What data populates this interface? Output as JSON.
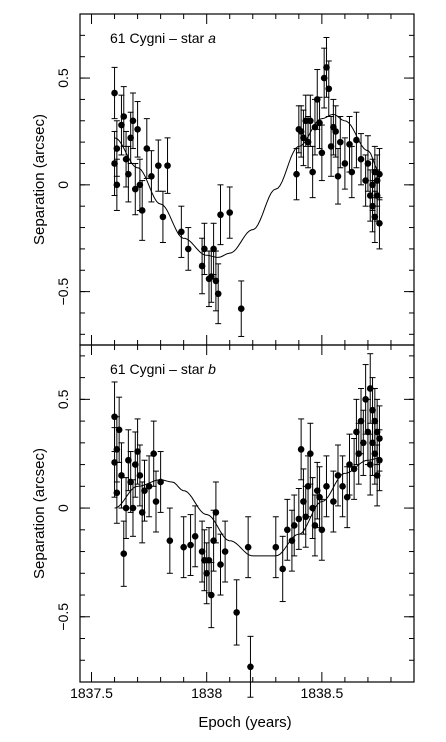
{
  "chart_data": {
    "type": "scatter",
    "xlabel": "Epoch (years)",
    "xlim": [
      1837.45,
      1838.9
    ],
    "x_ticks": [
      1837.5,
      1838,
      1838.5
    ],
    "x_tick_labels": [
      "1837.5",
      "1838",
      "1838.5"
    ],
    "panels": [
      {
        "label_text": "61 Cygni – star ",
        "label_italic": "a",
        "ylabel": "Separation (arcsec)",
        "ylim": [
          -0.75,
          0.8
        ],
        "y_ticks": [
          -0.5,
          0,
          0.5
        ],
        "y_tick_labels": [
          "−0.5",
          "0",
          "0.5"
        ],
        "fit_curve": {
          "x": [
            1837.6,
            1837.7,
            1837.8,
            1837.9,
            1838.0,
            1838.05,
            1838.1,
            1838.2,
            1838.3,
            1838.4,
            1838.5,
            1838.55,
            1838.6,
            1838.7,
            1838.75
          ],
          "y": [
            0.22,
            0.08,
            -0.09,
            -0.25,
            -0.33,
            -0.34,
            -0.32,
            -0.21,
            -0.02,
            0.18,
            0.31,
            0.33,
            0.3,
            0.16,
            0.06
          ]
        },
        "series": [
          {
            "points": [
              {
                "x": 1837.6,
                "y": 0.43,
                "err": 0.12
              },
              {
                "x": 1837.6,
                "y": 0.1,
                "err": 0.15
              },
              {
                "x": 1837.61,
                "y": 0.17,
                "err": 0.13
              },
              {
                "x": 1837.61,
                "y": 0.0,
                "err": 0.12
              },
              {
                "x": 1837.63,
                "y": 0.28,
                "err": 0.14
              },
              {
                "x": 1837.64,
                "y": 0.32,
                "err": 0.14
              },
              {
                "x": 1837.65,
                "y": 0.12,
                "err": 0.13
              },
              {
                "x": 1837.66,
                "y": 0.05,
                "err": 0.13
              },
              {
                "x": 1837.67,
                "y": 0.22,
                "err": 0.12
              },
              {
                "x": 1837.68,
                "y": 0.3,
                "err": 0.13
              },
              {
                "x": 1837.69,
                "y": -0.02,
                "err": 0.12
              },
              {
                "x": 1837.7,
                "y": 0.26,
                "err": 0.13
              },
              {
                "x": 1837.71,
                "y": 0.0,
                "err": 0.12
              },
              {
                "x": 1837.72,
                "y": -0.12,
                "err": 0.14
              },
              {
                "x": 1837.74,
                "y": 0.17,
                "err": 0.14
              },
              {
                "x": 1837.76,
                "y": 0.04,
                "err": 0.12
              },
              {
                "x": 1837.79,
                "y": 0.09,
                "err": 0.12
              },
              {
                "x": 1837.81,
                "y": -0.15,
                "err": 0.12
              },
              {
                "x": 1837.83,
                "y": 0.09,
                "err": 0.13
              },
              {
                "x": 1837.89,
                "y": -0.22,
                "err": 0.12
              },
              {
                "x": 1837.92,
                "y": -0.3,
                "err": 0.1
              },
              {
                "x": 1837.98,
                "y": -0.38,
                "err": 0.13
              },
              {
                "x": 1837.99,
                "y": -0.3,
                "err": 0.12
              },
              {
                "x": 1838.01,
                "y": -0.44,
                "err": 0.13
              },
              {
                "x": 1838.02,
                "y": -0.43,
                "err": 0.12
              },
              {
                "x": 1838.03,
                "y": -0.3,
                "err": 0.12
              },
              {
                "x": 1838.04,
                "y": -0.45,
                "err": 0.14
              },
              {
                "x": 1838.05,
                "y": -0.51,
                "err": 0.14
              },
              {
                "x": 1838.06,
                "y": -0.14,
                "err": 0.14
              },
              {
                "x": 1838.1,
                "y": -0.13,
                "err": 0.12
              },
              {
                "x": 1838.15,
                "y": -0.58,
                "err": 0.13
              },
              {
                "x": 1838.39,
                "y": 0.05,
                "err": 0.12
              },
              {
                "x": 1838.4,
                "y": 0.26,
                "err": 0.11
              },
              {
                "x": 1838.41,
                "y": 0.25,
                "err": 0.12
              },
              {
                "x": 1838.42,
                "y": 0.22,
                "err": 0.13
              },
              {
                "x": 1838.43,
                "y": 0.3,
                "err": 0.12
              },
              {
                "x": 1838.44,
                "y": 0.2,
                "err": 0.12
              },
              {
                "x": 1838.45,
                "y": 0.3,
                "err": 0.12
              },
              {
                "x": 1838.46,
                "y": 0.06,
                "err": 0.12
              },
              {
                "x": 1838.47,
                "y": 0.27,
                "err": 0.13
              },
              {
                "x": 1838.48,
                "y": 0.4,
                "err": 0.14
              },
              {
                "x": 1838.49,
                "y": 0.29,
                "err": 0.12
              },
              {
                "x": 1838.5,
                "y": 0.15,
                "err": 0.13
              },
              {
                "x": 1838.51,
                "y": 0.5,
                "err": 0.14
              },
              {
                "x": 1838.52,
                "y": 0.55,
                "err": 0.14
              },
              {
                "x": 1838.53,
                "y": 0.45,
                "err": 0.13
              },
              {
                "x": 1838.54,
                "y": 0.18,
                "err": 0.14
              },
              {
                "x": 1838.55,
                "y": 0.27,
                "err": 0.13
              },
              {
                "x": 1838.56,
                "y": 0.25,
                "err": 0.12
              },
              {
                "x": 1838.57,
                "y": 0.04,
                "err": 0.13
              },
              {
                "x": 1838.58,
                "y": 0.2,
                "err": 0.12
              },
              {
                "x": 1838.6,
                "y": 0.1,
                "err": 0.12
              },
              {
                "x": 1838.62,
                "y": 0.19,
                "err": 0.13
              },
              {
                "x": 1838.63,
                "y": 0.06,
                "err": 0.12
              },
              {
                "x": 1838.65,
                "y": 0.21,
                "err": 0.13
              },
              {
                "x": 1838.67,
                "y": 0.12,
                "err": 0.12
              },
              {
                "x": 1838.69,
                "y": 0.02,
                "err": 0.12
              },
              {
                "x": 1838.7,
                "y": 0.1,
                "err": 0.13
              },
              {
                "x": 1838.71,
                "y": -0.05,
                "err": 0.12
              },
              {
                "x": 1838.72,
                "y": 0.0,
                "err": 0.12
              },
              {
                "x": 1838.72,
                "y": -0.1,
                "err": 0.12
              },
              {
                "x": 1838.73,
                "y": 0.06,
                "err": 0.12
              },
              {
                "x": 1838.73,
                "y": -0.15,
                "err": 0.12
              },
              {
                "x": 1838.74,
                "y": 0.02,
                "err": 0.12
              },
              {
                "x": 1838.74,
                "y": -0.05,
                "err": 0.12
              },
              {
                "x": 1838.75,
                "y": 0.05,
                "err": 0.12
              },
              {
                "x": 1838.75,
                "y": -0.18,
                "err": 0.12
              }
            ]
          }
        ]
      },
      {
        "label_text": "61 Cygni – star ",
        "label_italic": "b",
        "ylabel": "Separation (arcsec)",
        "ylim": [
          -0.8,
          0.75
        ],
        "y_ticks": [
          -0.5,
          0,
          0.5
        ],
        "y_tick_labels": [
          "−0.5",
          "0",
          "0.5"
        ],
        "fit_curve": {
          "x": [
            1837.6,
            1837.7,
            1837.8,
            1837.85,
            1837.9,
            1838.0,
            1838.1,
            1838.2,
            1838.3,
            1838.4,
            1838.5,
            1838.6,
            1838.7,
            1838.75
          ],
          "y": [
            0.0,
            0.1,
            0.13,
            0.12,
            0.08,
            -0.03,
            -0.15,
            -0.22,
            -0.22,
            -0.12,
            0.03,
            0.16,
            0.22,
            0.23
          ]
        },
        "series": [
          {
            "points": [
              {
                "x": 1837.6,
                "y": 0.42,
                "err": 0.16
              },
              {
                "x": 1837.6,
                "y": 0.21,
                "err": 0.16
              },
              {
                "x": 1837.61,
                "y": 0.27,
                "err": 0.15
              },
              {
                "x": 1837.61,
                "y": 0.07,
                "err": 0.14
              },
              {
                "x": 1837.62,
                "y": 0.36,
                "err": 0.15
              },
              {
                "x": 1837.63,
                "y": 0.15,
                "err": 0.15
              },
              {
                "x": 1837.64,
                "y": -0.21,
                "err": 0.15
              },
              {
                "x": 1837.65,
                "y": 0.0,
                "err": 0.14
              },
              {
                "x": 1837.66,
                "y": 0.22,
                "err": 0.14
              },
              {
                "x": 1837.67,
                "y": 0.12,
                "err": 0.14
              },
              {
                "x": 1837.68,
                "y": 0.0,
                "err": 0.13
              },
              {
                "x": 1837.69,
                "y": 0.2,
                "err": 0.15
              },
              {
                "x": 1837.7,
                "y": 0.26,
                "err": 0.15
              },
              {
                "x": 1837.71,
                "y": 0.15,
                "err": 0.14
              },
              {
                "x": 1837.72,
                "y": -0.02,
                "err": 0.14
              },
              {
                "x": 1837.73,
                "y": 0.08,
                "err": 0.14
              },
              {
                "x": 1837.75,
                "y": 0.1,
                "err": 0.14
              },
              {
                "x": 1837.77,
                "y": 0.25,
                "err": 0.15
              },
              {
                "x": 1837.78,
                "y": 0.03,
                "err": 0.14
              },
              {
                "x": 1837.8,
                "y": 0.12,
                "err": 0.14
              },
              {
                "x": 1837.84,
                "y": -0.15,
                "err": 0.15
              },
              {
                "x": 1837.9,
                "y": -0.18,
                "err": 0.14
              },
              {
                "x": 1837.93,
                "y": -0.17,
                "err": 0.14
              },
              {
                "x": 1837.95,
                "y": -0.13,
                "err": 0.14
              },
              {
                "x": 1837.98,
                "y": -0.2,
                "err": 0.14
              },
              {
                "x": 1837.99,
                "y": -0.24,
                "err": 0.14
              },
              {
                "x": 1838.0,
                "y": -0.3,
                "err": 0.14
              },
              {
                "x": 1838.01,
                "y": -0.24,
                "err": 0.15
              },
              {
                "x": 1838.02,
                "y": -0.4,
                "err": 0.15
              },
              {
                "x": 1838.03,
                "y": -0.15,
                "err": 0.14
              },
              {
                "x": 1838.04,
                "y": -0.02,
                "err": 0.14
              },
              {
                "x": 1838.06,
                "y": -0.26,
                "err": 0.14
              },
              {
                "x": 1838.08,
                "y": -0.2,
                "err": 0.14
              },
              {
                "x": 1838.13,
                "y": -0.48,
                "err": 0.15
              },
              {
                "x": 1838.18,
                "y": -0.18,
                "err": 0.14
              },
              {
                "x": 1838.19,
                "y": -0.73,
                "err": 0.14
              },
              {
                "x": 1838.3,
                "y": -0.18,
                "err": 0.14
              },
              {
                "x": 1838.33,
                "y": -0.28,
                "err": 0.15
              },
              {
                "x": 1838.35,
                "y": -0.1,
                "err": 0.14
              },
              {
                "x": 1838.37,
                "y": -0.15,
                "err": 0.14
              },
              {
                "x": 1838.38,
                "y": -0.08,
                "err": 0.14
              },
              {
                "x": 1838.4,
                "y": -0.05,
                "err": 0.14
              },
              {
                "x": 1838.41,
                "y": 0.27,
                "err": 0.14
              },
              {
                "x": 1838.42,
                "y": 0.03,
                "err": 0.15
              },
              {
                "x": 1838.43,
                "y": -0.04,
                "err": 0.14
              },
              {
                "x": 1838.44,
                "y": 0.1,
                "err": 0.14
              },
              {
                "x": 1838.45,
                "y": 0.25,
                "err": 0.14
              },
              {
                "x": 1838.46,
                "y": 0.0,
                "err": 0.14
              },
              {
                "x": 1838.47,
                "y": -0.08,
                "err": 0.14
              },
              {
                "x": 1838.48,
                "y": 0.08,
                "err": 0.13
              },
              {
                "x": 1838.49,
                "y": 0.05,
                "err": 0.14
              },
              {
                "x": 1838.5,
                "y": -0.1,
                "err": 0.14
              },
              {
                "x": 1838.52,
                "y": 0.1,
                "err": 0.14
              },
              {
                "x": 1838.55,
                "y": 0.03,
                "err": 0.14
              },
              {
                "x": 1838.57,
                "y": 0.15,
                "err": 0.14
              },
              {
                "x": 1838.59,
                "y": 0.1,
                "err": 0.14
              },
              {
                "x": 1838.61,
                "y": 0.05,
                "err": 0.14
              },
              {
                "x": 1838.62,
                "y": 0.2,
                "err": 0.14
              },
              {
                "x": 1838.64,
                "y": 0.18,
                "err": 0.14
              },
              {
                "x": 1838.65,
                "y": 0.35,
                "err": 0.15
              },
              {
                "x": 1838.66,
                "y": 0.25,
                "err": 0.14
              },
              {
                "x": 1838.67,
                "y": 0.4,
                "err": 0.15
              },
              {
                "x": 1838.68,
                "y": 0.3,
                "err": 0.15
              },
              {
                "x": 1838.69,
                "y": 0.5,
                "err": 0.16
              },
              {
                "x": 1838.7,
                "y": 0.35,
                "err": 0.15
              },
              {
                "x": 1838.71,
                "y": 0.55,
                "err": 0.16
              },
              {
                "x": 1838.71,
                "y": 0.2,
                "err": 0.14
              },
              {
                "x": 1838.72,
                "y": 0.45,
                "err": 0.15
              },
              {
                "x": 1838.72,
                "y": 0.3,
                "err": 0.15
              },
              {
                "x": 1838.73,
                "y": 0.4,
                "err": 0.15
              },
              {
                "x": 1838.73,
                "y": 0.25,
                "err": 0.14
              },
              {
                "x": 1838.74,
                "y": 0.35,
                "err": 0.15
              },
              {
                "x": 1838.74,
                "y": 0.15,
                "err": 0.14
              },
              {
                "x": 1838.75,
                "y": 0.32,
                "err": 0.15
              },
              {
                "x": 1838.75,
                "y": 0.22,
                "err": 0.14
              }
            ]
          }
        ]
      }
    ]
  }
}
